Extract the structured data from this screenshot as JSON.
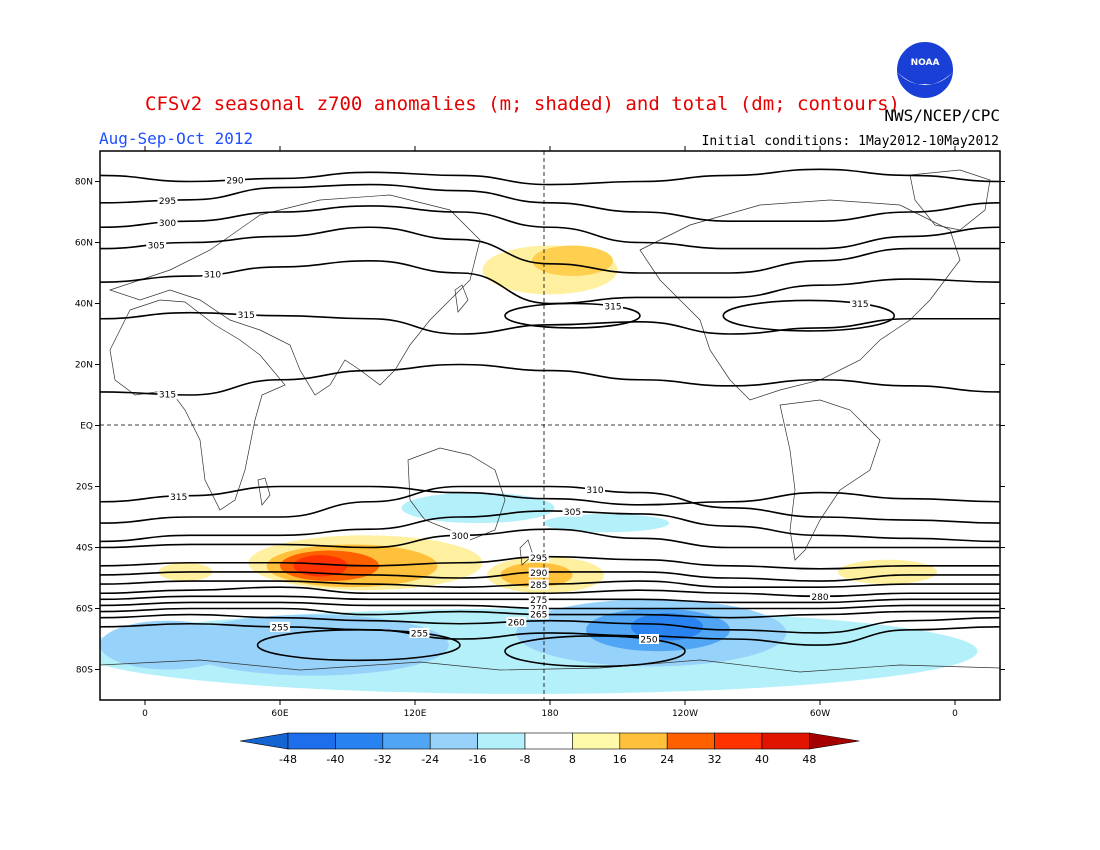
{
  "header": {
    "title": "CFSv2 seasonal z700 anomalies (m; shaded) and total (dm; contours)",
    "period": "Aug-Sep-Oct 2012",
    "initial_conditions": "Initial conditions: 1May2012-10May2012",
    "organization": "NWS/NCEP/CPC",
    "logo_text": "NOAA"
  },
  "chart_data": {
    "type": "heatmap",
    "projection": "cylindrical equidistant",
    "lon_range": [
      -20,
      380
    ],
    "lat_range": [
      -90,
      90
    ],
    "x_ticks": [
      {
        "lon": 0,
        "label": "0"
      },
      {
        "lon": 60,
        "label": "60E"
      },
      {
        "lon": 120,
        "label": "120E"
      },
      {
        "lon": 180,
        "label": "180"
      },
      {
        "lon": 240,
        "label": "120W"
      },
      {
        "lon": 300,
        "label": "60W"
      },
      {
        "lon": 360,
        "label": "0"
      }
    ],
    "y_ticks": [
      {
        "lat": 80,
        "label": "80N"
      },
      {
        "lat": 60,
        "label": "60N"
      },
      {
        "lat": 40,
        "label": "40N"
      },
      {
        "lat": 20,
        "label": "20N"
      },
      {
        "lat": 0,
        "label": "EQ"
      },
      {
        "lat": -20,
        "label": "20S"
      },
      {
        "lat": -40,
        "label": "40S"
      },
      {
        "lat": -60,
        "label": "60S"
      },
      {
        "lat": -80,
        "label": "80S"
      }
    ],
    "colorbar": {
      "ticks": [
        "-48",
        "-40",
        "-32",
        "-24",
        "-16",
        "-8",
        "8",
        "16",
        "24",
        "32",
        "40",
        "48"
      ],
      "colors": [
        "#1464d2",
        "#1e6eeb",
        "#2882f0",
        "#50a5f5",
        "#96d2fa",
        "#b4f0fa",
        "#ffffff",
        "#fffaaa",
        "#ffc03c",
        "#ff6000",
        "#ff3200",
        "#e11400",
        "#a50000"
      ]
    },
    "anomaly_regions": [
      {
        "value": 12,
        "center": [
          180,
          51
        ],
        "radius": [
          30,
          8
        ],
        "color": "#fff0a0"
      },
      {
        "value": 20,
        "center": [
          190,
          54
        ],
        "radius": [
          18,
          5
        ],
        "color": "#ffd050"
      },
      {
        "value": 12,
        "center": [
          98,
          -45
        ],
        "radius": [
          52,
          9
        ],
        "color": "#fff0a0"
      },
      {
        "value": 20,
        "center": [
          92,
          -46
        ],
        "radius": [
          38,
          7
        ],
        "color": "#ffc03c"
      },
      {
        "value": 28,
        "center": [
          82,
          -46
        ],
        "radius": [
          22,
          5
        ],
        "color": "#ff6000"
      },
      {
        "value": 34,
        "center": [
          78,
          -46
        ],
        "radius": [
          12,
          3.5
        ],
        "color": "#ff3200"
      },
      {
        "value": 12,
        "center": [
          178,
          -49
        ],
        "radius": [
          26,
          6
        ],
        "color": "#fff0a0"
      },
      {
        "value": 20,
        "center": [
          174,
          -49
        ],
        "radius": [
          16,
          4
        ],
        "color": "#ffc03c"
      },
      {
        "value": 12,
        "center": [
          330,
          -48
        ],
        "radius": [
          22,
          4
        ],
        "color": "#fff0a0"
      },
      {
        "value": 12,
        "center": [
          18,
          -48
        ],
        "radius": [
          12,
          3
        ],
        "color": "#fff0a0"
      },
      {
        "value": -12,
        "center": [
          148,
          -27
        ],
        "radius": [
          34,
          5
        ],
        "color": "#b4f0fa"
      },
      {
        "value": -12,
        "center": [
          205,
          -32
        ],
        "radius": [
          28,
          3
        ],
        "color": "#b4f0fa"
      },
      {
        "value": -12,
        "center": [
          170,
          -74
        ],
        "radius": [
          200,
          14
        ],
        "color": "#b4f0fa"
      },
      {
        "value": -20,
        "center": [
          75,
          -72
        ],
        "radius": [
          60,
          10
        ],
        "color": "#96d2fa"
      },
      {
        "value": -20,
        "center": [
          225,
          -68
        ],
        "radius": [
          60,
          11
        ],
        "color": "#96d2fa"
      },
      {
        "value": -20,
        "center": [
          10,
          -72
        ],
        "radius": [
          30,
          8
        ],
        "color": "#96d2fa"
      },
      {
        "value": -28,
        "center": [
          228,
          -67
        ],
        "radius": [
          32,
          7
        ],
        "color": "#50a5f5"
      },
      {
        "value": -36,
        "center": [
          232,
          -66
        ],
        "radius": [
          16,
          4.5
        ],
        "color": "#2882f0"
      }
    ],
    "contours": [
      {
        "value": 290,
        "label": "290",
        "lats": [
          82,
          80,
          81,
          83,
          82,
          79,
          80,
          82,
          84,
          82,
          80
        ],
        "label_lon": 40
      },
      {
        "value": 295,
        "label": "295",
        "lats": [
          73,
          74,
          78,
          79,
          77,
          73,
          70,
          67,
          67,
          70,
          73
        ],
        "label_lon": 10
      },
      {
        "value": 300,
        "label": "300",
        "lats": [
          65,
          67,
          70,
          72,
          70,
          65,
          60,
          58,
          58,
          62,
          65
        ],
        "label_lon": 10
      },
      {
        "value": 305,
        "label": "305",
        "lats": [
          58,
          60,
          62,
          65,
          61,
          53,
          50,
          50,
          54,
          58,
          58
        ],
        "label_lon": 5
      },
      {
        "value": 310,
        "label": "310",
        "lats": [
          47,
          49,
          52,
          54,
          50,
          40,
          42,
          42,
          46,
          48,
          47
        ],
        "label_lon": 30
      },
      {
        "value": 315,
        "label": "315",
        "lats": [
          35,
          37,
          36,
          35,
          30,
          33,
          34,
          30,
          32,
          35,
          35
        ],
        "label_lon": 45
      },
      {
        "value": 315,
        "label": "315",
        "lats": [
          11,
          10,
          15,
          18,
          20,
          18,
          15,
          13,
          15,
          13,
          11
        ],
        "label_lon": 10
      },
      {
        "value": 315,
        "label": "315",
        "lats": [
          -25,
          -23,
          -20,
          -20,
          -22,
          -24,
          -26,
          -25,
          -22,
          -24,
          -25
        ],
        "label_lon": 15
      },
      {
        "value": 310,
        "label": "310",
        "lats": [
          -32,
          -30,
          -30,
          -25,
          -20,
          -20,
          -22,
          -27,
          -30,
          -31,
          -32
        ],
        "label_lon": 200
      },
      {
        "value": 305,
        "label": "305",
        "lats": [
          -38,
          -36,
          -36,
          -34,
          -30,
          -28,
          -29,
          -33,
          -36,
          -37,
          -38
        ],
        "label_lon": 190
      },
      {
        "value": 300,
        "label": "300",
        "lats": [
          -40,
          -39,
          -39,
          -40,
          -36,
          -34,
          -37,
          -40,
          -40,
          -40,
          -40
        ],
        "label_lon": 140
      },
      {
        "value": 295,
        "label": "295",
        "lats": [
          -46,
          -45,
          -45,
          -46,
          -45,
          -43,
          -44,
          -46,
          -47,
          -46,
          -46
        ],
        "label_lon": 175
      },
      {
        "value": 290,
        "label": "290",
        "lats": [
          -49,
          -48,
          -48,
          -49,
          -50,
          -48,
          -48,
          -50,
          -51,
          -49,
          -49
        ],
        "label_lon": 175
      },
      {
        "value": 285,
        "label": "285",
        "lats": [
          -52,
          -51,
          -51,
          -52,
          -53,
          -52,
          -51,
          -53,
          -53,
          -52,
          -52
        ],
        "label_lon": 175
      },
      {
        "value": 280,
        "label": "280",
        "lats": [
          -55,
          -54,
          -53,
          -55,
          -55,
          -55,
          -54,
          -55,
          -56,
          -55,
          -55
        ],
        "label_lon": 300
      },
      {
        "value": 275,
        "label": "275",
        "lats": [
          -57,
          -56,
          -56,
          -57,
          -57,
          -57,
          -57,
          -58,
          -58,
          -57,
          -57
        ],
        "label_lon": 175
      },
      {
        "value": 270,
        "label": "270",
        "lats": [
          -59,
          -58,
          -58,
          -59,
          -59,
          -60,
          -60,
          -60,
          -60,
          -59,
          -59
        ],
        "label_lon": 175
      },
      {
        "value": 265,
        "label": "265",
        "lats": [
          -61,
          -60,
          -60,
          -62,
          -61,
          -62,
          -62,
          -63,
          -62,
          -61,
          -61
        ],
        "label_lon": 175
      },
      {
        "value": 260,
        "label": "260",
        "lats": [
          -63,
          -62,
          -63,
          -64,
          -65,
          -64,
          -65,
          -67,
          -68,
          -64,
          -63
        ],
        "label_lon": 165
      },
      {
        "value": 255,
        "label": "255",
        "lats": [
          -66,
          -65,
          -66,
          -67,
          -70,
          -68,
          -69,
          -70,
          -72,
          -67,
          -66
        ],
        "label_lon": 60
      }
    ],
    "contour_rings": [
      {
        "value": 315,
        "label": "315",
        "center": [
          190,
          36
        ],
        "radius": [
          30,
          4
        ]
      },
      {
        "value": 315,
        "label": "315",
        "center": [
          295,
          36
        ],
        "radius": [
          38,
          5
        ]
      },
      {
        "value": 255,
        "label": "255",
        "center": [
          95,
          -72
        ],
        "radius": [
          45,
          5
        ]
      },
      {
        "value": 250,
        "label": "250",
        "center": [
          200,
          -74
        ],
        "radius": [
          40,
          5
        ]
      }
    ]
  }
}
